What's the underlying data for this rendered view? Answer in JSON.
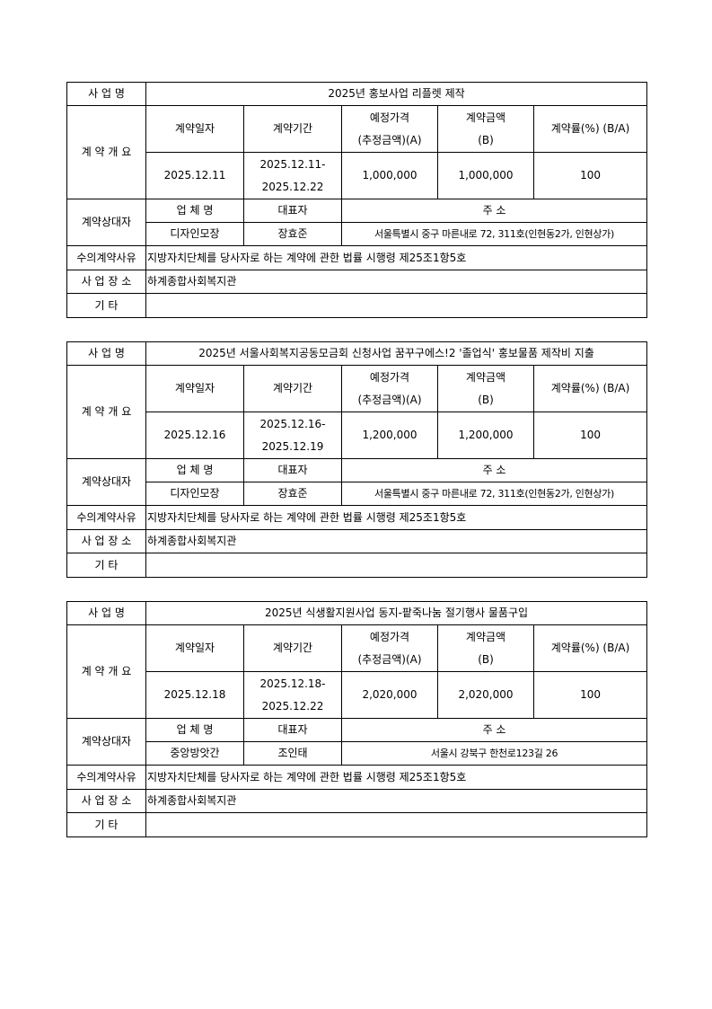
{
  "labels": {
    "project_name": "사 업 명",
    "overview": "계 약 개 요",
    "contract_date": "계약일자",
    "contract_period": "계약기간",
    "estimated_price_line1": "예정가격",
    "estimated_price_line2": "(추정금액)(A)",
    "contract_amount_line1": "계약금액",
    "contract_amount_line2": "(B)",
    "contract_rate": "계약률(%) (B/A)",
    "counterparty": "계약상대자",
    "company_name": "업 체 명",
    "representative": "대표자",
    "address": "주 소",
    "reason": "수의계약사유",
    "location": "사 업 장 소",
    "etc": "기 타"
  },
  "contracts": [
    {
      "project_name": "2025년 홍보사업 리플렛 제작",
      "contract_date": "2025.12.11",
      "period_start": "2025.12.11-",
      "period_end": "2025.12.22",
      "estimated_price": "1,000,000",
      "contract_amount": "1,000,000",
      "contract_rate": "100",
      "company_name": "디자인모장",
      "representative": "장효준",
      "address": "서울특별시 중구 마른내로 72, 311호(인현동2가, 인현상가)",
      "reason": "지방자치단체를 당사자로 하는 계약에 관한 법률 시행령 제25조1항5호",
      "location": "하계종합사회복지관",
      "etc": ""
    },
    {
      "project_name": "2025년 서울사회복지공동모금회 신청사업 꿈꾸구에스!2 '졸업식' 홍보물품 제작비 지출",
      "contract_date": "2025.12.16",
      "period_start": "2025.12.16-",
      "period_end": "2025.12.19",
      "estimated_price": "1,200,000",
      "contract_amount": "1,200,000",
      "contract_rate": "100",
      "company_name": "디자인모장",
      "representative": "장효준",
      "address": "서울특별시 중구 마른내로 72, 311호(인현동2가, 인현상가)",
      "reason": "지방자치단체를 당사자로 하는 계약에 관한 법률 시행령 제25조1항5호",
      "location": "하계종합사회복지관",
      "etc": ""
    },
    {
      "project_name": "2025년 식생활지원사업 동지-팥죽나눔 절기행사 물품구입",
      "contract_date": "2025.12.18",
      "period_start": "2025.12.18-",
      "period_end": "2025.12.22",
      "estimated_price": "2,020,000",
      "contract_amount": "2,020,000",
      "contract_rate": "100",
      "company_name": "중앙방앗간",
      "representative": "조인태",
      "address": "서울시 강북구 한천로123길 26",
      "reason": "지방자치단체를 당사자로 하는 계약에 관한 법률 시행령 제25조1항5호",
      "location": "하계종합사회복지관",
      "etc": ""
    }
  ]
}
